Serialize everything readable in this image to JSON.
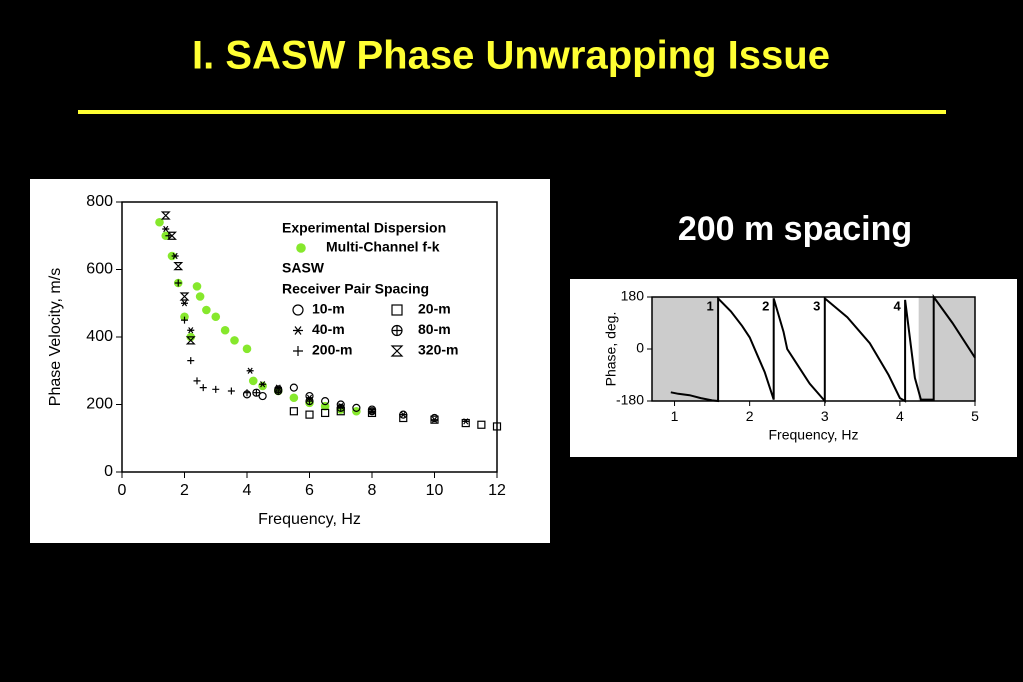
{
  "slide": {
    "title": "I. SASW Phase Unwrapping Issue",
    "subtitle": "200 m spacing"
  },
  "chart_data": [
    {
      "type": "scatter",
      "xlabel": "Frequency, Hz",
      "ylabel": "Phase Velocity, m/s",
      "xlim": [
        0,
        12
      ],
      "ylim": [
        0,
        800
      ],
      "xticks": [
        0,
        2,
        4,
        6,
        8,
        10,
        12
      ],
      "yticks": [
        0,
        200,
        400,
        600,
        800
      ],
      "legend_title": "Experimental Dispersion",
      "legend_headings": [
        "SASW",
        "Receiver Pair Spacing"
      ],
      "series": [
        {
          "name": "Multi-Channel f-k",
          "color": "#86e82c",
          "marker": "dot",
          "x": [
            1.2,
            1.4,
            1.6,
            1.8,
            2.0,
            2.2,
            2.4,
            2.5,
            2.7,
            3.0,
            3.3,
            3.6,
            4.0,
            4.2,
            4.5,
            5.0,
            5.5,
            6.0,
            6.5,
            7.0,
            7.5
          ],
          "y": [
            740,
            700,
            640,
            560,
            460,
            400,
            550,
            520,
            480,
            460,
            420,
            390,
            365,
            270,
            255,
            240,
            220,
            205,
            195,
            185,
            180
          ]
        },
        {
          "name": "10-m",
          "color": "#000000",
          "marker": "circle",
          "x": [
            4.0,
            4.5,
            5.0,
            5.5,
            6.0,
            6.5,
            7.0,
            7.5,
            8.0,
            9.0,
            10.0
          ],
          "y": [
            230,
            225,
            245,
            250,
            225,
            210,
            200,
            190,
            185,
            170,
            160
          ]
        },
        {
          "name": "20-m",
          "color": "#000000",
          "marker": "square",
          "x": [
            5.5,
            6.0,
            6.5,
            7.0,
            8.0,
            9.0,
            10.0,
            11.0,
            11.5,
            12.0
          ],
          "y": [
            180,
            170,
            175,
            180,
            175,
            160,
            155,
            145,
            140,
            135
          ]
        },
        {
          "name": "40-m",
          "color": "#000000",
          "marker": "asterisk",
          "x": [
            1.4,
            1.7,
            2.0,
            2.2,
            4.1,
            4.5,
            5.0,
            6.0,
            7.0,
            8.0,
            9.0,
            10.0,
            11.0
          ],
          "y": [
            720,
            640,
            500,
            420,
            300,
            260,
            250,
            220,
            195,
            180,
            170,
            155,
            150
          ]
        },
        {
          "name": "80-m",
          "color": "#000000",
          "marker": "circle-plus",
          "x": [
            4.3,
            5.0,
            6.0,
            7.0,
            8.0
          ],
          "y": [
            235,
            240,
            210,
            190,
            180
          ]
        },
        {
          "name": "200-m",
          "color": "#000000",
          "marker": "plus",
          "x": [
            1.5,
            1.8,
            2.0,
            2.2,
            2.4,
            2.6,
            3.0,
            3.5,
            4.0
          ],
          "y": [
            700,
            560,
            450,
            330,
            270,
            250,
            245,
            240,
            235
          ]
        },
        {
          "name": "320-m",
          "color": "#000000",
          "marker": "hourglass",
          "x": [
            1.4,
            1.6,
            1.8,
            2.0,
            2.2
          ],
          "y": [
            760,
            700,
            610,
            520,
            390
          ]
        }
      ]
    },
    {
      "type": "line",
      "xlabel": "Frequency, Hz",
      "ylabel": "Phase, deg.",
      "xlim": [
        0.7,
        5
      ],
      "ylim": [
        -180,
        180
      ],
      "xticks": [
        1,
        2,
        3,
        4,
        5
      ],
      "yticks": [
        -180,
        0,
        180
      ],
      "color": "#000000",
      "shade_color": "#cccccc",
      "shaded_regions": [
        [
          0.7,
          1.57
        ],
        [
          4.25,
          5
        ]
      ],
      "annotations": [
        "1",
        "2",
        "3",
        "4"
      ],
      "x": [
        0.95,
        1.05,
        1.2,
        1.35,
        1.5,
        1.58,
        1.58,
        1.75,
        1.9,
        2.0,
        2.1,
        2.2,
        2.32,
        2.32,
        2.45,
        2.5,
        2.6,
        2.8,
        3.0,
        3.0,
        3.3,
        3.6,
        3.85,
        4.0,
        4.07,
        4.07,
        4.2,
        4.28,
        4.45,
        4.45,
        4.7,
        5.0
      ],
      "values": [
        -150,
        -155,
        -160,
        -170,
        -178,
        -180,
        175,
        130,
        80,
        40,
        -20,
        -80,
        -175,
        175,
        60,
        0,
        -40,
        -120,
        -180,
        175,
        110,
        20,
        -90,
        -170,
        -180,
        170,
        -100,
        -175,
        -175,
        180,
        90,
        -30
      ]
    }
  ]
}
